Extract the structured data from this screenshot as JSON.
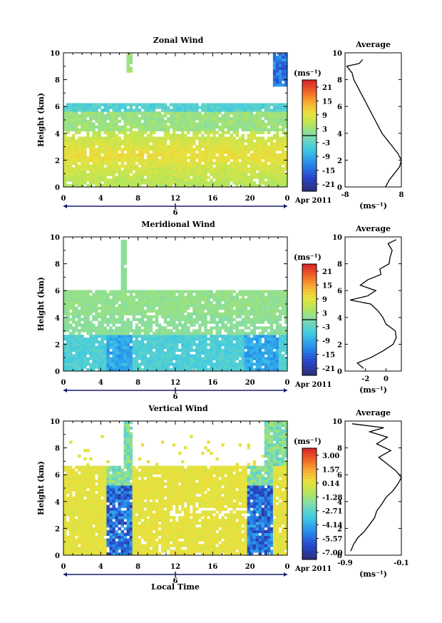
{
  "figure": {
    "x_axis_label": "Local Time",
    "month_label": "Apr 2011",
    "day_marker": "6",
    "unit_label": "(ms⁻¹)",
    "avg_title": "Average"
  },
  "chart_data": [
    {
      "type": "heatmap",
      "title": "Zonal Wind",
      "xlabel": "",
      "ylabel": "Height (km)",
      "xlim": [
        0,
        24
      ],
      "x_ticks": [
        "0",
        "4",
        "8",
        "12",
        "16",
        "20",
        "0"
      ],
      "ylim": [
        0,
        10
      ],
      "y_ticks": [
        "0",
        "2",
        "4",
        "6",
        "8",
        "10"
      ],
      "colorbar_ticks": [
        "21",
        "15",
        "9",
        "3",
        "-3",
        "-9",
        "-15",
        "-21"
      ],
      "colorbar_range": [
        -24,
        24
      ],
      "average_profile": {
        "title": "Average",
        "xlabel": "(ms⁻¹)",
        "x_ticks": [
          "-8",
          "8"
        ],
        "xlim": [
          -8,
          8
        ],
        "height": [
          0.0,
          0.5,
          1.0,
          1.5,
          2.0,
          2.5,
          3.0,
          3.5,
          4.0,
          4.5,
          5.0,
          5.5,
          6.0,
          6.5,
          7.0,
          7.5,
          8.0,
          8.5,
          9.0,
          9.2,
          9.5
        ],
        "value": [
          3.5,
          4.5,
          6.0,
          7.5,
          8.0,
          7.0,
          5.5,
          4.0,
          2.5,
          1.5,
          0.5,
          -0.5,
          -1.5,
          -2.5,
          -3.5,
          -4.5,
          -5.5,
          -6.0,
          -7.5,
          -4.0,
          -3.0
        ]
      }
    },
    {
      "type": "heatmap",
      "title": "Meridional Wind",
      "xlabel": "",
      "ylabel": "Height (km)",
      "xlim": [
        0,
        24
      ],
      "x_ticks": [
        "0",
        "4",
        "8",
        "12",
        "16",
        "20",
        "0"
      ],
      "ylim": [
        0,
        10
      ],
      "y_ticks": [
        "0",
        "2",
        "4",
        "6",
        "8",
        "10"
      ],
      "colorbar_ticks": [
        "21",
        "15",
        "9",
        "3",
        "-3",
        "-9",
        "-15",
        "-21"
      ],
      "colorbar_range": [
        -24,
        24
      ],
      "average_profile": {
        "title": "Average",
        "xlabel": "(ms⁻¹)",
        "x_ticks": [
          "-2",
          "0"
        ],
        "xlim": [
          -4,
          1.5
        ],
        "height": [
          0.2,
          0.6,
          1.0,
          1.5,
          2.0,
          2.5,
          3.0,
          3.5,
          4.0,
          4.5,
          5.0,
          5.3,
          5.6,
          6.0,
          6.4,
          6.8,
          7.2,
          7.6,
          8.0,
          8.5,
          9.0,
          9.5,
          9.8
        ],
        "value": [
          -2.2,
          -2.8,
          -1.5,
          -0.3,
          0.7,
          1.0,
          0.9,
          0.0,
          -0.3,
          -0.8,
          -1.5,
          -3.5,
          -1.8,
          -1.0,
          -2.5,
          -1.8,
          -0.5,
          -0.6,
          0.3,
          0.4,
          0.6,
          0.2,
          1.0
        ]
      }
    },
    {
      "type": "heatmap",
      "title": "Vertical Wind",
      "xlabel": "Local Time",
      "ylabel": "Height (km)",
      "xlim": [
        0,
        24
      ],
      "x_ticks": [
        "0",
        "4",
        "8",
        "12",
        "16",
        "20",
        "0"
      ],
      "ylim": [
        0,
        10
      ],
      "y_ticks": [
        "0",
        "2",
        "4",
        "6",
        "8",
        "10"
      ],
      "colorbar_ticks": [
        "3.00",
        "1.57",
        "0.14",
        "-1.28",
        "-2.71",
        "-4.14",
        "-5.57",
        "-7.00"
      ],
      "colorbar_range": [
        -7.7,
        3.7
      ],
      "average_profile": {
        "title": "Average",
        "xlabel": "(ms⁻¹)",
        "x_ticks": [
          "-0.9",
          "-0.1"
        ],
        "xlim": [
          -0.9,
          -0.1
        ],
        "height": [
          0.3,
          0.8,
          1.3,
          1.8,
          2.3,
          2.8,
          3.3,
          3.8,
          4.3,
          4.8,
          5.3,
          5.8,
          6.3,
          6.8,
          7.3,
          7.8,
          8.3,
          8.8,
          9.2,
          9.5,
          9.8
        ],
        "value": [
          -0.82,
          -0.78,
          -0.72,
          -0.62,
          -0.55,
          -0.48,
          -0.45,
          -0.38,
          -0.32,
          -0.22,
          -0.15,
          -0.1,
          -0.18,
          -0.3,
          -0.42,
          -0.25,
          -0.45,
          -0.3,
          -0.55,
          -0.35,
          -0.8
        ]
      }
    }
  ]
}
